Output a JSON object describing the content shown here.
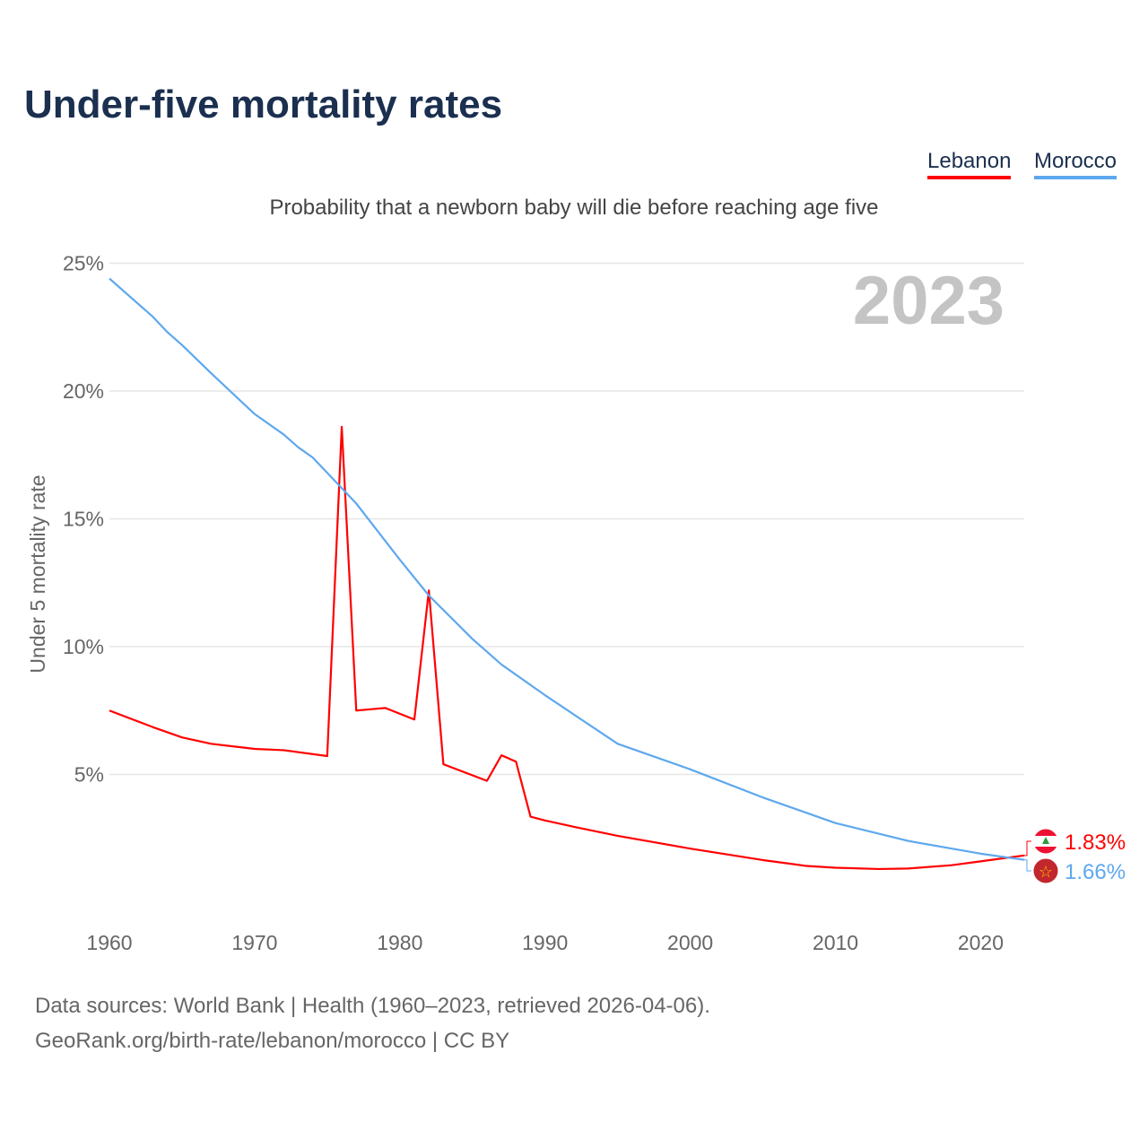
{
  "title": "Under-five mortality rates",
  "subtitle": "Probability that a newborn baby will die before reaching age five",
  "year_label": "2023",
  "footer": {
    "line1": "Data sources: World Bank | Health (1960–2023, retrieved 2026-04-06).",
    "line2": "GeoRank.org/birth-rate/lebanon/morocco | CC BY"
  },
  "chart_data": {
    "type": "line",
    "ylabel": "Under 5 mortality rate",
    "xlim": [
      1960,
      2023
    ],
    "ylim": [
      0,
      25
    ],
    "xticks": [
      "1960",
      "1970",
      "1980",
      "1990",
      "2000",
      "2010",
      "2020"
    ],
    "yticks": [
      "5%",
      "10%",
      "15%",
      "20%",
      "25%"
    ],
    "legend": [
      "Lebanon",
      "Morocco"
    ],
    "series": [
      {
        "name": "Lebanon",
        "color": "#ff0000",
        "end_label": "1.83%",
        "x": [
          1960,
          1963,
          1965,
          1967,
          1970,
          1972,
          1975,
          1976,
          1977,
          1978,
          1979,
          1981,
          1982,
          1983,
          1986,
          1987,
          1988,
          1989,
          1990,
          1992,
          1995,
          2000,
          2005,
          2008,
          2010,
          2013,
          2015,
          2018,
          2020,
          2023
        ],
        "y": [
          7.5,
          6.85,
          6.45,
          6.2,
          6.0,
          5.95,
          5.72,
          18.6,
          7.5,
          7.55,
          7.6,
          7.15,
          12.2,
          5.4,
          4.75,
          5.75,
          5.5,
          3.35,
          3.2,
          2.95,
          2.6,
          2.1,
          1.65,
          1.42,
          1.35,
          1.3,
          1.32,
          1.45,
          1.6,
          1.83
        ]
      },
      {
        "name": "Morocco",
        "color": "#5ea8ee",
        "end_label": "1.66%",
        "x": [
          1960,
          1963,
          1964,
          1965,
          1967,
          1970,
          1972,
          1973,
          1974,
          1976,
          1977,
          1980,
          1982,
          1985,
          1987,
          1990,
          1995,
          2000,
          2005,
          2010,
          2015,
          2020,
          2023
        ],
        "y": [
          24.4,
          22.9,
          22.3,
          21.8,
          20.7,
          19.1,
          18.3,
          17.8,
          17.4,
          16.2,
          15.6,
          13.4,
          12.0,
          10.3,
          9.3,
          8.1,
          6.2,
          5.2,
          4.1,
          3.1,
          2.4,
          1.9,
          1.66
        ]
      }
    ]
  }
}
